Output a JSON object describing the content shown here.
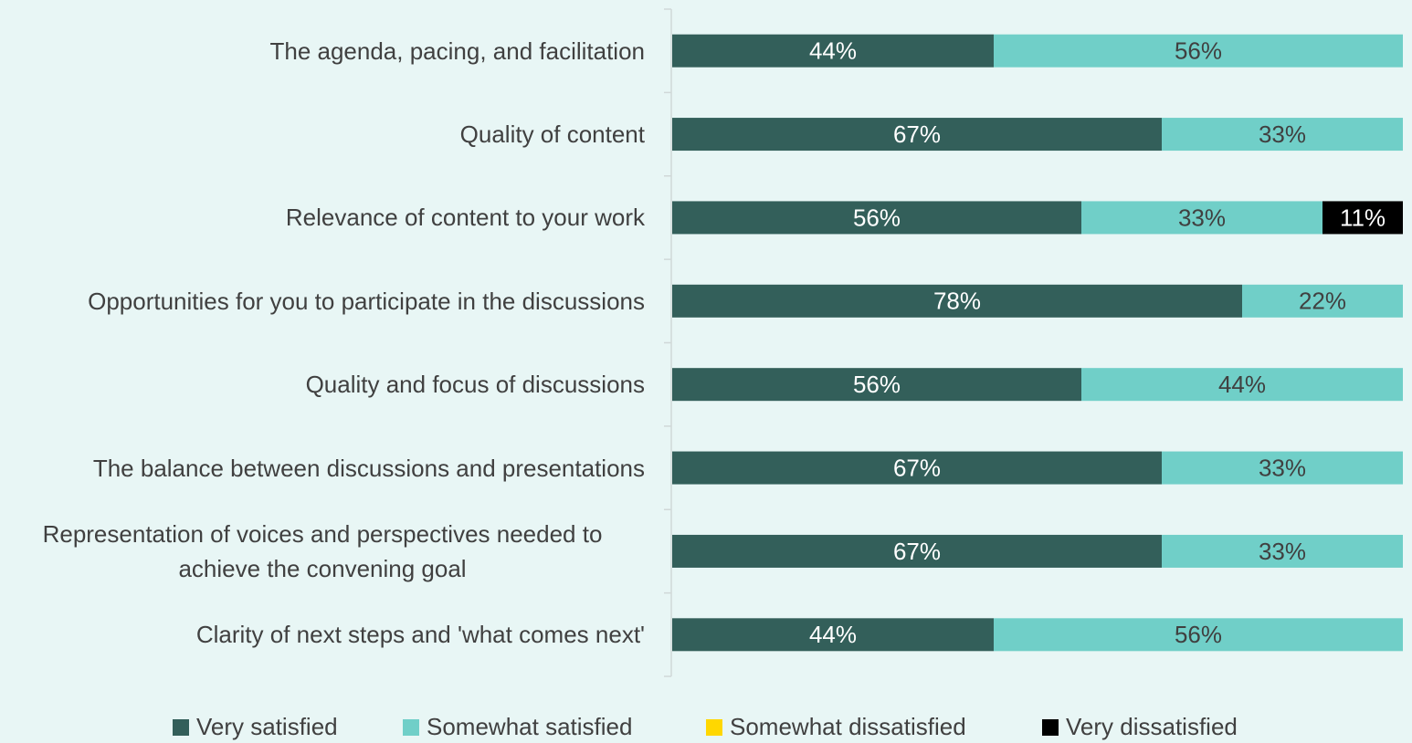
{
  "chart_data": {
    "type": "stacked-bar-horizontal",
    "categories": [
      "The agenda, pacing, and facilitation",
      "Quality of content",
      "Relevance of content to your work",
      "Opportunities for you to participate in the discussions",
      "Quality and focus of discussions",
      "The balance between discussions and presentations",
      "Representation of voices and perspectives needed to achieve the convening goal",
      "Clarity of next steps and 'what comes next'"
    ],
    "series": [
      {
        "name": "Very satisfied",
        "color": "#335f5a",
        "values": [
          44,
          67,
          56,
          78,
          56,
          67,
          67,
          44
        ],
        "value_labels": [
          "44%",
          "67%",
          "56%",
          "78%",
          "56%",
          "67%",
          "67%",
          "44%"
        ]
      },
      {
        "name": "Somewhat satisfied",
        "color": "#70cfc8",
        "values": [
          56,
          33,
          33,
          22,
          44,
          33,
          33,
          56
        ],
        "value_labels": [
          "56%",
          "33%",
          "33%",
          "22%",
          "44%",
          "33%",
          "33%",
          "56%"
        ]
      },
      {
        "name": "Somewhat dissatisfied",
        "color": "#ffd700",
        "values": [
          null,
          null,
          null,
          null,
          null,
          null,
          null,
          null
        ],
        "value_labels": [
          null,
          null,
          null,
          null,
          null,
          null,
          null,
          null
        ]
      },
      {
        "name": "Very dissatisfied",
        "color": "#000000",
        "values": [
          null,
          null,
          11,
          null,
          null,
          null,
          null,
          null
        ],
        "value_labels": [
          null,
          null,
          "11%",
          null,
          null,
          null,
          null,
          null
        ]
      }
    ],
    "xlim": [
      0,
      100
    ],
    "legend": "bottom"
  }
}
